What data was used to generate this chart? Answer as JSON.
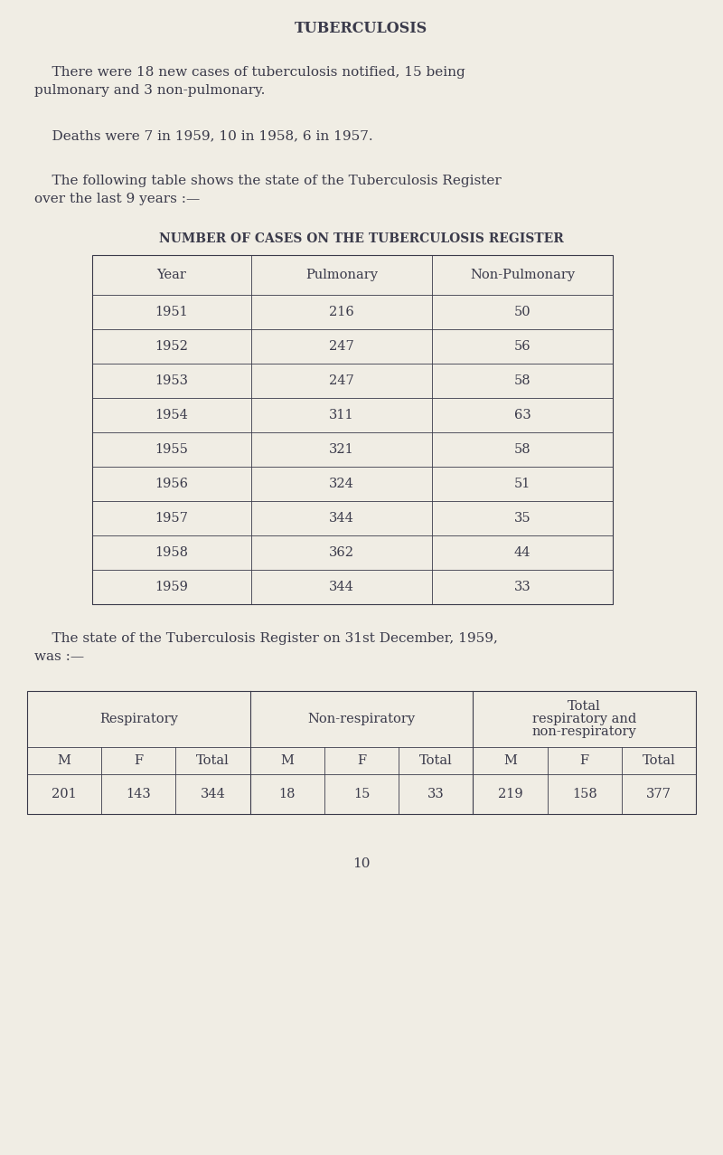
{
  "bg_color": "#f0ede4",
  "text_color": "#3a3a4a",
  "title": "TUBERCULOSIS",
  "para1_line1": "    There were 18 new cases of tuberculosis notified, 15 being",
  "para1_line2": "pulmonary and 3 non-pulmonary.",
  "para2": "    Deaths were 7 in 1959, 10 in 1958, 6 in 1957.",
  "para3_line1": "    The following table shows the state of the Tuberculosis Register",
  "para3_line2": "over the last 9 years :—",
  "table1_title": "NUMBER OF CASES ON THE TUBERCULOSIS REGISTER",
  "table1_headers": [
    "Year",
    "Pulmonary",
    "Non-Pulmonary"
  ],
  "table1_data": [
    [
      "1951",
      "216",
      "50"
    ],
    [
      "1952",
      "247",
      "56"
    ],
    [
      "1953",
      "247",
      "58"
    ],
    [
      "1954",
      "311",
      "63"
    ],
    [
      "1955",
      "321",
      "58"
    ],
    [
      "1956",
      "324",
      "51"
    ],
    [
      "1957",
      "344",
      "35"
    ],
    [
      "1958",
      "362",
      "44"
    ],
    [
      "1959",
      "344",
      "33"
    ]
  ],
  "para4_line1": "    The state of the Tuberculosis Register on 31st December, 1959,",
  "para4_line2": "was :—",
  "table2_group_headers": [
    "Respiratory",
    "Non-respiratory",
    "Total\nrespiratory and\nnon-respiratory"
  ],
  "table2_sub_headers": [
    "M",
    "F",
    "Total",
    "M",
    "F",
    "Total",
    "M",
    "F",
    "Total"
  ],
  "table2_data": [
    "201",
    "143",
    "344",
    "18",
    "15",
    "33",
    "219",
    "158",
    "377"
  ],
  "page_number": "10",
  "font_family": "serif",
  "title_fontsize": 11.5,
  "body_fontsize": 11,
  "table_fontsize": 10.5,
  "bold_table_title_fontsize": 10
}
